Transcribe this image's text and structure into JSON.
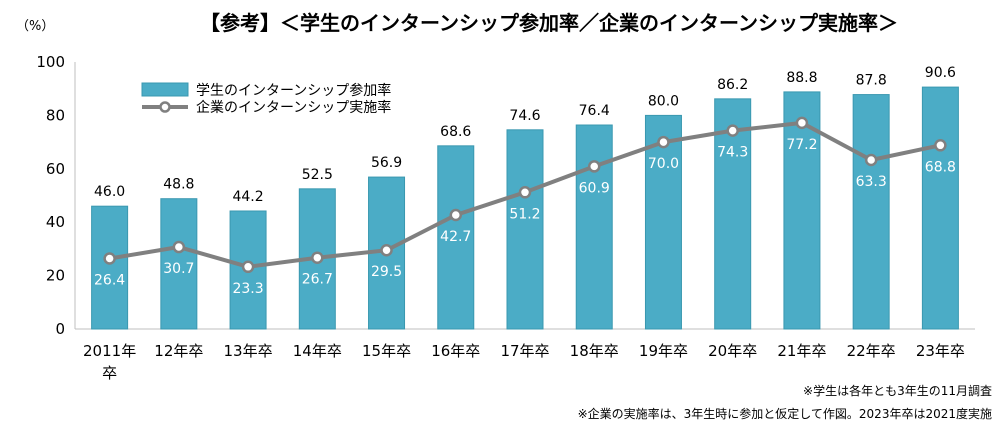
{
  "chart_data": {
    "type": "bar",
    "title": "【参考】＜学生のインターンシップ参加率／企業のインターンシップ実施率＞",
    "y_unit": "（%）",
    "ylim": [
      0,
      100
    ],
    "y_ticks": [
      0,
      20,
      40,
      60,
      80,
      100
    ],
    "grid": false,
    "legend_position": "top-left",
    "categories": [
      "2011年卒",
      "12年卒",
      "13年卒",
      "14年卒",
      "15年卒",
      "16年卒",
      "17年卒",
      "18年卒",
      "19年卒",
      "20年卒",
      "21年卒",
      "22年卒",
      "23年卒"
    ],
    "series": [
      {
        "name": "学生のインターンシップ参加率",
        "type": "bar",
        "color": "#4bacc6",
        "values": [
          46.0,
          48.8,
          44.2,
          52.5,
          56.9,
          68.6,
          74.6,
          76.4,
          80.0,
          86.2,
          88.8,
          87.8,
          90.6
        ],
        "labels": [
          "46.0",
          "48.8",
          "44.2",
          "52.5",
          "56.9",
          "68.6",
          "74.6",
          "76.4",
          "80.0",
          "86.2",
          "88.8",
          "87.8",
          "90.6"
        ]
      },
      {
        "name": "企業のインターンシップ実施率",
        "type": "line",
        "color": "#808080",
        "values": [
          26.4,
          30.7,
          23.3,
          26.7,
          29.5,
          42.7,
          51.2,
          60.9,
          70.0,
          74.3,
          77.2,
          63.3,
          68.8
        ],
        "labels": [
          "26.4",
          "30.7",
          "23.3",
          "26.7",
          "29.5",
          "42.7",
          "51.2",
          "60.9",
          "70.0",
          "74.3",
          "77.2",
          "63.3",
          "68.8"
        ]
      }
    ],
    "notes": [
      "※学生は各年とも3年生の11月調査",
      "※企業の実施率は、3年生時に参加と仮定して作図。2023年卒は2021度実施"
    ]
  }
}
